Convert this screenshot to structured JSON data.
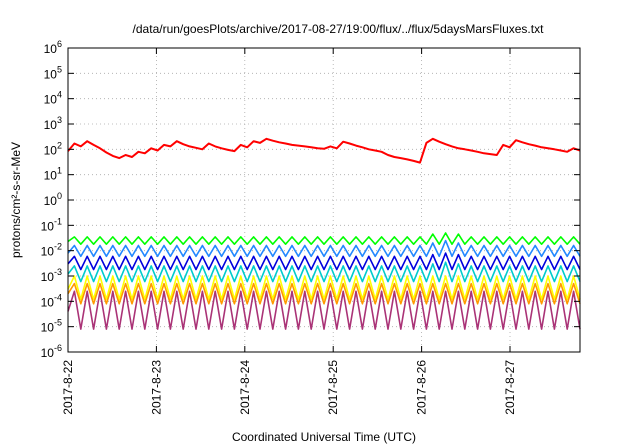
{
  "chart_data": {
    "type": "line",
    "title": "/data/run/goesPlots/archive/2017-08-27/19:00/flux/../flux/5daysMarsFluxes.txt",
    "xlabel": "Coordinated Universal Time (UTC)",
    "ylabel": "protons/cm²-s-sr-MeV",
    "y_scale": "log",
    "ylim": [
      "1e-6",
      "1e6"
    ],
    "y_tick_base": "10",
    "y_tick_exponents": [
      "-6",
      "-5",
      "-4",
      "-3",
      "-2",
      "-1",
      "0",
      "1",
      "2",
      "3",
      "4",
      "5",
      "6"
    ],
    "xlim": [
      "2017-08-22",
      "2017-08-27 19:00"
    ],
    "x_ticks": [
      "2017-8-22",
      "2017-8-23",
      "2017-8-24",
      "2017-8-25",
      "2017-8-26",
      "2017-8-27"
    ],
    "grid": true,
    "legend": "none",
    "series": [
      {
        "color": "#ff0000",
        "values": [
          85,
          170,
          130,
          210,
          150,
          110,
          75,
          55,
          45,
          60,
          50,
          80,
          70,
          110,
          90,
          150,
          130,
          210,
          160,
          130,
          115,
          100,
          170,
          130,
          110,
          95,
          85,
          150,
          120,
          210,
          180,
          260,
          220,
          190,
          170,
          150,
          140,
          130,
          120,
          110,
          105,
          130,
          110,
          200,
          170,
          140,
          120,
          100,
          90,
          80,
          60,
          50,
          45,
          40,
          35,
          30,
          180,
          260,
          200,
          160,
          130,
          110,
          100,
          90,
          80,
          70,
          65,
          60,
          150,
          120,
          230,
          190,
          160,
          140,
          120,
          110,
          100,
          90,
          80,
          110,
          90
        ]
      },
      {
        "color": "#00ff00",
        "values": [
          0.023,
          0.035,
          0.018,
          0.035,
          0.018,
          0.035,
          0.018,
          0.035,
          0.018,
          0.035,
          0.018,
          0.035,
          0.018,
          0.035,
          0.018,
          0.035,
          0.018,
          0.035,
          0.018,
          0.035,
          0.018,
          0.035,
          0.018,
          0.035,
          0.018,
          0.035,
          0.018,
          0.035,
          0.018,
          0.035,
          0.018,
          0.035,
          0.018,
          0.035,
          0.018,
          0.035,
          0.018,
          0.035,
          0.018,
          0.035,
          0.018,
          0.035,
          0.018,
          0.035,
          0.018,
          0.035,
          0.018,
          0.035,
          0.018,
          0.035,
          0.018,
          0.035,
          0.018,
          0.035,
          0.018,
          0.035,
          0.018,
          0.045,
          0.018,
          0.05,
          0.018,
          0.045,
          0.018,
          0.035,
          0.018,
          0.035,
          0.018,
          0.035,
          0.018,
          0.035,
          0.018,
          0.035,
          0.018,
          0.035,
          0.018,
          0.035,
          0.018,
          0.035,
          0.018,
          0.035,
          0.018
        ]
      },
      {
        "color": "#2288ff",
        "values": [
          0.008,
          0.016,
          0.006,
          0.016,
          0.006,
          0.016,
          0.006,
          0.016,
          0.006,
          0.016,
          0.006,
          0.016,
          0.006,
          0.016,
          0.006,
          0.016,
          0.006,
          0.016,
          0.006,
          0.016,
          0.006,
          0.016,
          0.006,
          0.016,
          0.006,
          0.016,
          0.006,
          0.016,
          0.006,
          0.016,
          0.006,
          0.016,
          0.006,
          0.016,
          0.006,
          0.016,
          0.006,
          0.016,
          0.006,
          0.016,
          0.006,
          0.016,
          0.006,
          0.016,
          0.006,
          0.016,
          0.006,
          0.016,
          0.006,
          0.016,
          0.006,
          0.016,
          0.006,
          0.016,
          0.006,
          0.016,
          0.006,
          0.02,
          0.006,
          0.025,
          0.006,
          0.02,
          0.006,
          0.016,
          0.006,
          0.016,
          0.006,
          0.016,
          0.006,
          0.016,
          0.006,
          0.016,
          0.006,
          0.016,
          0.006,
          0.016,
          0.006,
          0.016,
          0.006,
          0.016,
          0.006
        ]
      },
      {
        "color": "#0000dd",
        "values": [
          0.003,
          0.006,
          0.0018,
          0.006,
          0.0018,
          0.006,
          0.0018,
          0.006,
          0.0018,
          0.006,
          0.0018,
          0.006,
          0.0018,
          0.006,
          0.0018,
          0.006,
          0.0018,
          0.006,
          0.0018,
          0.006,
          0.0018,
          0.006,
          0.0018,
          0.006,
          0.0018,
          0.006,
          0.0018,
          0.006,
          0.0018,
          0.006,
          0.0018,
          0.006,
          0.0018,
          0.006,
          0.0018,
          0.006,
          0.0018,
          0.006,
          0.0018,
          0.006,
          0.0018,
          0.006,
          0.0018,
          0.006,
          0.0018,
          0.006,
          0.0018,
          0.006,
          0.0018,
          0.006,
          0.0018,
          0.006,
          0.0018,
          0.006,
          0.0018,
          0.006,
          0.0018,
          0.007,
          0.0018,
          0.008,
          0.0018,
          0.007,
          0.0018,
          0.006,
          0.0018,
          0.006,
          0.0018,
          0.006,
          0.0018,
          0.006,
          0.0018,
          0.006,
          0.0018,
          0.006,
          0.0018,
          0.006,
          0.0018,
          0.006,
          0.0018,
          0.006,
          0.0018
        ]
      },
      {
        "color": "#00cccc",
        "values": [
          0.0012,
          0.0025,
          0.0006,
          0.0025,
          0.0006,
          0.0025,
          0.0006,
          0.0025,
          0.0006,
          0.0025,
          0.0006,
          0.0025,
          0.0006,
          0.0025,
          0.0006,
          0.0025,
          0.0006,
          0.0025,
          0.0006,
          0.0025,
          0.0006,
          0.0025,
          0.0006,
          0.0025,
          0.0006,
          0.0025,
          0.0006,
          0.0025,
          0.0006,
          0.0025,
          0.0006,
          0.0025,
          0.0006,
          0.0025,
          0.0006,
          0.0025,
          0.0006,
          0.0025,
          0.0006,
          0.0025,
          0.0006,
          0.0025,
          0.0006,
          0.0025,
          0.0006,
          0.0025,
          0.0006,
          0.0025,
          0.0006,
          0.0025,
          0.0006,
          0.0025,
          0.0006,
          0.0025,
          0.0006,
          0.0025,
          0.0006,
          0.003,
          0.0006,
          0.0035,
          0.0006,
          0.003,
          0.0006,
          0.0025,
          0.0006,
          0.0025,
          0.0006,
          0.0025,
          0.0006,
          0.0025,
          0.0006,
          0.0025,
          0.0006,
          0.0025,
          0.0006,
          0.0025,
          0.0006,
          0.0025,
          0.0006,
          0.0025,
          0.0006
        ]
      },
      {
        "color": "#ffff00",
        "values": [
          0.0003,
          0.001,
          0.00012,
          0.001,
          0.00012,
          0.001,
          0.00012,
          0.001,
          0.00012,
          0.001,
          0.00012,
          0.001,
          0.00012,
          0.001,
          0.00012,
          0.001,
          0.00012,
          0.001,
          0.00012,
          0.001,
          0.00012,
          0.001,
          0.00012,
          0.001,
          0.00012,
          0.001,
          0.00012,
          0.001,
          0.00012,
          0.001,
          0.00012,
          0.001,
          0.00012,
          0.001,
          0.00012,
          0.001,
          0.00012,
          0.001,
          0.00012,
          0.001,
          0.00012,
          0.001,
          0.00012,
          0.001,
          0.00012,
          0.001,
          0.00012,
          0.001,
          0.00012,
          0.001,
          0.00012,
          0.001,
          0.00012,
          0.001,
          0.00012,
          0.001,
          0.00012,
          0.001,
          0.00012,
          0.001,
          0.00012,
          0.001,
          0.00012,
          0.001,
          0.00012,
          0.001,
          0.00012,
          0.001,
          0.00012,
          0.001,
          0.00012,
          0.001,
          0.00012,
          0.001,
          0.00012,
          0.001,
          0.00012,
          0.001,
          0.00012,
          0.001,
          0.00012
        ]
      },
      {
        "color": "#ff9900",
        "values": [
          0.0002,
          0.0005,
          8e-05,
          0.0005,
          8e-05,
          0.0005,
          8e-05,
          0.0005,
          8e-05,
          0.0005,
          8e-05,
          0.0005,
          8e-05,
          0.0005,
          8e-05,
          0.0005,
          8e-05,
          0.0005,
          8e-05,
          0.0005,
          8e-05,
          0.0005,
          8e-05,
          0.0005,
          8e-05,
          0.0005,
          8e-05,
          0.0005,
          8e-05,
          0.0005,
          8e-05,
          0.0005,
          8e-05,
          0.0005,
          8e-05,
          0.0005,
          8e-05,
          0.0005,
          8e-05,
          0.0005,
          8e-05,
          0.0005,
          8e-05,
          0.0005,
          8e-05,
          0.0005,
          8e-05,
          0.0005,
          8e-05,
          0.0005,
          8e-05,
          0.0005,
          8e-05,
          0.0005,
          8e-05,
          0.0005,
          8e-05,
          0.0005,
          8e-05,
          0.0005,
          8e-05,
          0.0005,
          8e-05,
          0.0005,
          8e-05,
          0.0005,
          8e-05,
          0.0005,
          8e-05,
          0.0005,
          8e-05,
          0.0005,
          8e-05,
          0.0005,
          8e-05,
          0.0005,
          8e-05,
          0.0005,
          8e-05,
          0.0005,
          8e-05
        ]
      },
      {
        "color": "#aa3377",
        "values": [
          4e-05,
          0.00025,
          8e-06,
          0.00025,
          8e-06,
          0.00025,
          8e-06,
          0.00025,
          8e-06,
          0.00025,
          8e-06,
          0.00025,
          8e-06,
          0.00025,
          8e-06,
          0.00025,
          8e-06,
          0.00025,
          8e-06,
          0.00025,
          8e-06,
          0.00025,
          8e-06,
          0.00025,
          8e-06,
          0.00025,
          8e-06,
          0.00025,
          8e-06,
          0.00025,
          8e-06,
          0.00025,
          8e-06,
          0.00025,
          8e-06,
          0.00025,
          8e-06,
          0.00025,
          8e-06,
          0.00025,
          8e-06,
          0.00025,
          8e-06,
          0.00025,
          8e-06,
          0.00025,
          8e-06,
          0.00025,
          8e-06,
          0.00025,
          8e-06,
          0.00025,
          8e-06,
          0.00025,
          8e-06,
          0.00025,
          8e-06,
          0.00025,
          8e-06,
          0.00025,
          8e-06,
          0.00025,
          8e-06,
          0.00025,
          8e-06,
          0.00025,
          8e-06,
          0.00025,
          8e-06,
          0.00025,
          8e-06,
          0.00025,
          8e-06,
          0.00025,
          8e-06,
          0.00025,
          8e-06,
          0.00025,
          8e-06,
          0.00025,
          8e-06
        ]
      }
    ]
  }
}
